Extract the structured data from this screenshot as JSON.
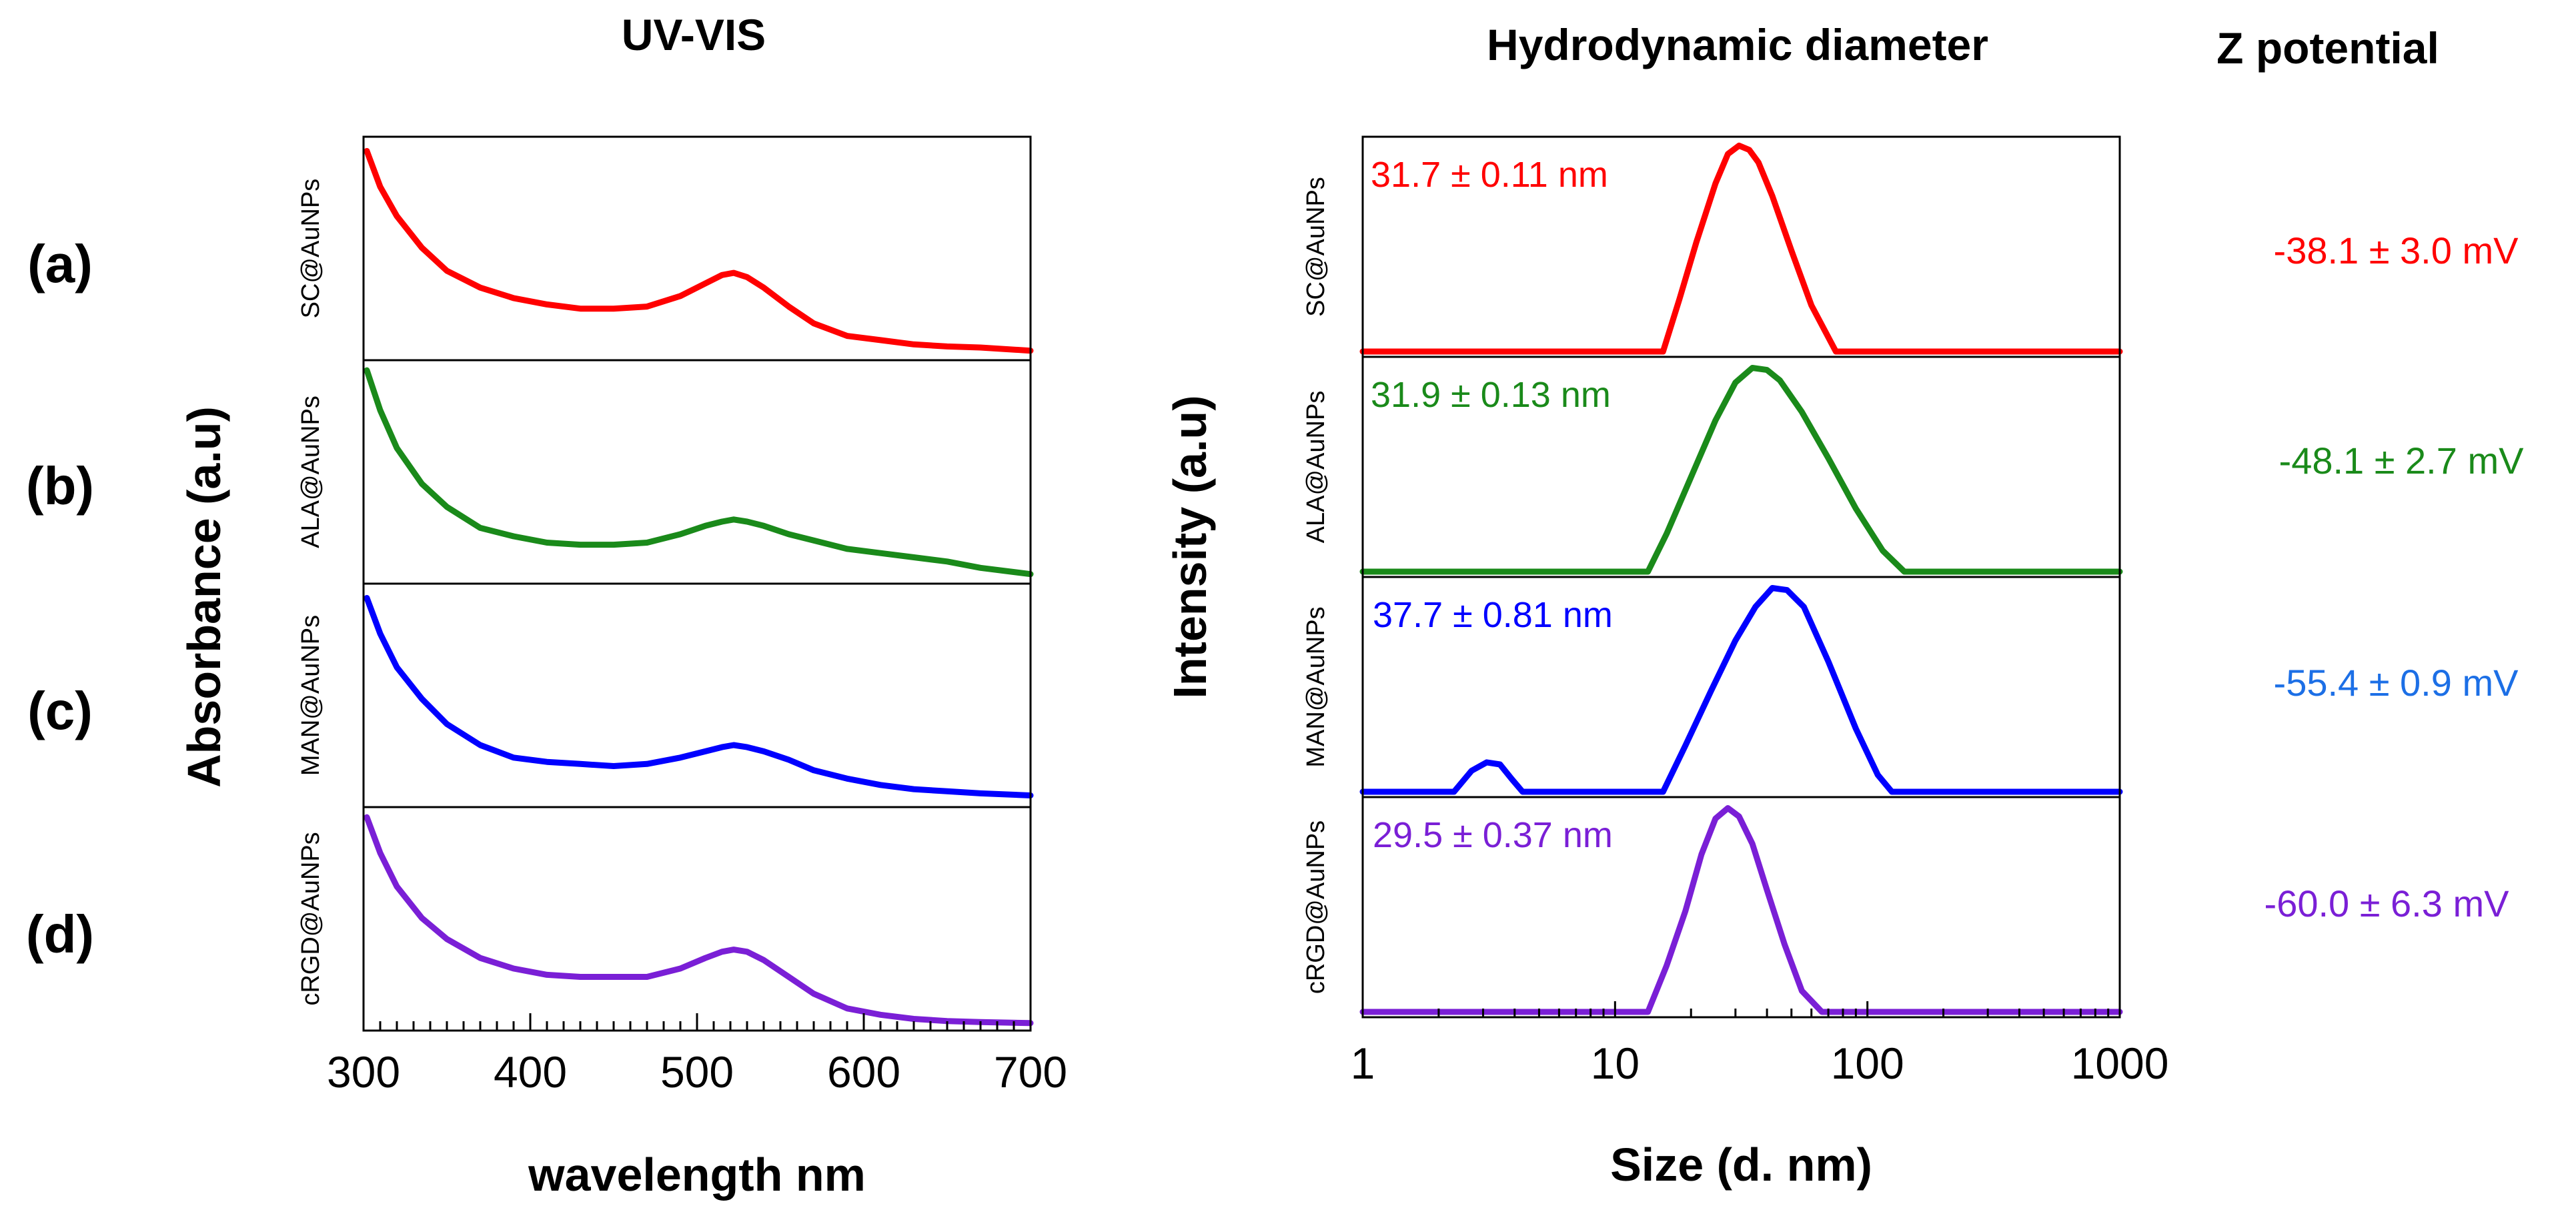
{
  "titles": {
    "uvvis": "UV-VIS",
    "dls": "Hydrodynamic diameter",
    "zeta": "Z potential"
  },
  "panel_labels": [
    "(a)",
    "(b)",
    "(c)",
    "(d)"
  ],
  "colors": {
    "red": "#ff0000",
    "green": "#1a8a1a",
    "blue": "#0000ff",
    "purple": "#7a1fd6",
    "zeta_blue": "#1c6fe6"
  },
  "chart_data": [
    {
      "type": "line",
      "title": "UV-VIS",
      "xlabel": "wavelength nm",
      "ylabel": "Absorbance (a.u)",
      "xlim": [
        300,
        700
      ],
      "ylim": [
        0,
        1
      ],
      "xticks": [
        300,
        400,
        500,
        600,
        700
      ],
      "xtick_labels": [
        "300",
        "400",
        "500",
        "600",
        "700"
      ],
      "series": [
        {
          "name": "SC@AuNPs",
          "color": "#ff0000",
          "x": [
            302,
            310,
            320,
            335,
            350,
            370,
            390,
            410,
            430,
            450,
            470,
            490,
            505,
            515,
            522,
            530,
            540,
            555,
            570,
            590,
            610,
            630,
            650,
            670,
            700
          ],
          "y": [
            0.97,
            0.8,
            0.66,
            0.51,
            0.4,
            0.32,
            0.27,
            0.24,
            0.22,
            0.22,
            0.23,
            0.28,
            0.34,
            0.38,
            0.39,
            0.37,
            0.32,
            0.23,
            0.15,
            0.09,
            0.07,
            0.05,
            0.04,
            0.035,
            0.02
          ]
        },
        {
          "name": "ALA@AuNPs",
          "color": "#1a8a1a",
          "x": [
            302,
            310,
            320,
            335,
            350,
            370,
            390,
            410,
            430,
            450,
            470,
            490,
            505,
            515,
            522,
            530,
            540,
            555,
            570,
            590,
            610,
            630,
            650,
            670,
            700
          ],
          "y": [
            0.99,
            0.8,
            0.62,
            0.45,
            0.34,
            0.24,
            0.2,
            0.17,
            0.16,
            0.16,
            0.17,
            0.21,
            0.25,
            0.27,
            0.28,
            0.27,
            0.25,
            0.21,
            0.18,
            0.14,
            0.12,
            0.1,
            0.08,
            0.05,
            0.02
          ]
        },
        {
          "name": "MAN@AuNPs",
          "color": "#0000ff",
          "x": [
            302,
            310,
            320,
            335,
            350,
            370,
            390,
            410,
            430,
            450,
            470,
            490,
            505,
            515,
            522,
            530,
            540,
            555,
            570,
            590,
            610,
            630,
            650,
            670,
            700
          ],
          "y": [
            0.97,
            0.8,
            0.64,
            0.49,
            0.37,
            0.27,
            0.21,
            0.19,
            0.18,
            0.17,
            0.18,
            0.21,
            0.24,
            0.26,
            0.27,
            0.26,
            0.24,
            0.2,
            0.15,
            0.11,
            0.08,
            0.06,
            0.05,
            0.04,
            0.03
          ]
        },
        {
          "name": "cRGD@AuNPs",
          "color": "#7a1fd6",
          "x": [
            302,
            310,
            320,
            335,
            350,
            370,
            390,
            410,
            430,
            450,
            470,
            490,
            505,
            515,
            522,
            530,
            540,
            555,
            570,
            590,
            610,
            630,
            650,
            670,
            700
          ],
          "y": [
            0.99,
            0.82,
            0.66,
            0.51,
            0.41,
            0.32,
            0.27,
            0.24,
            0.23,
            0.23,
            0.23,
            0.27,
            0.32,
            0.35,
            0.36,
            0.35,
            0.31,
            0.23,
            0.15,
            0.08,
            0.05,
            0.03,
            0.02,
            0.015,
            0.01
          ]
        }
      ]
    },
    {
      "type": "line",
      "title": "Hydrodynamic diameter",
      "xlabel": "Size (d. nm)",
      "ylabel": "Intensity (a.u)",
      "xscale": "log",
      "xlim": [
        1,
        1000
      ],
      "ylim": [
        0,
        1
      ],
      "xticks": [
        1,
        10,
        100,
        1000
      ],
      "xtick_labels": [
        "1",
        "10",
        "100",
        "1000"
      ],
      "series": [
        {
          "name": "SC@AuNPs",
          "annotation": "31.7 ± 0.11 nm",
          "color": "#ff0000",
          "x": [
            1,
            15.5,
            18,
            21,
            25,
            28,
            31,
            34,
            37,
            42,
            50,
            60,
            75,
            1000
          ],
          "y": [
            0,
            0,
            0.25,
            0.52,
            0.8,
            0.94,
            0.98,
            0.96,
            0.9,
            0.74,
            0.48,
            0.22,
            0,
            0
          ]
        },
        {
          "name": "ALA@AuNPs",
          "annotation": "31.9 ± 0.13 nm",
          "color": "#1a8a1a",
          "x": [
            1,
            13.5,
            16,
            20,
            25,
            30,
            35,
            40,
            45,
            55,
            70,
            90,
            115,
            140,
            1000
          ],
          "y": [
            0,
            0,
            0.18,
            0.45,
            0.72,
            0.9,
            0.97,
            0.96,
            0.91,
            0.76,
            0.54,
            0.3,
            0.1,
            0,
            0
          ]
        },
        {
          "name": "MAN@AuNPs",
          "annotation": "37.7 ± 0.81 nm",
          "color": "#0000ff",
          "x": [
            1,
            2.3,
            2.7,
            3.1,
            3.5,
            3.9,
            4.3,
            15.5,
            19,
            24,
            30,
            36,
            42,
            48,
            56,
            70,
            90,
            110,
            125,
            1000
          ],
          "y": [
            0,
            0,
            0.1,
            0.14,
            0.13,
            0.06,
            0,
            0,
            0.22,
            0.48,
            0.72,
            0.88,
            0.97,
            0.96,
            0.88,
            0.62,
            0.3,
            0.08,
            0,
            0
          ]
        },
        {
          "name": "cRGD@AuNPs",
          "annotation": "29.5 ± 0.37 nm",
          "color": "#7a1fd6",
          "x": [
            1,
            13.5,
            16,
            19,
            22,
            25,
            28,
            31,
            35,
            40,
            47,
            55,
            66,
            1000
          ],
          "y": [
            0,
            0,
            0.22,
            0.48,
            0.75,
            0.92,
            0.97,
            0.93,
            0.8,
            0.58,
            0.32,
            0.1,
            0,
            0
          ]
        }
      ]
    }
  ],
  "zeta": [
    {
      "label": "(a)",
      "value": "-38.1 ± 3.0 mV",
      "color": "#ff0000"
    },
    {
      "label": "(b)",
      "value": "-48.1 ± 2.7 mV",
      "color": "#1a8a1a"
    },
    {
      "label": "(c)",
      "value": "-55.4 ± 0.9 mV",
      "color": "#1c6fe6"
    },
    {
      "label": "(d)",
      "value": "-60.0 ± 6.3 mV",
      "color": "#7a1fd6"
    }
  ]
}
